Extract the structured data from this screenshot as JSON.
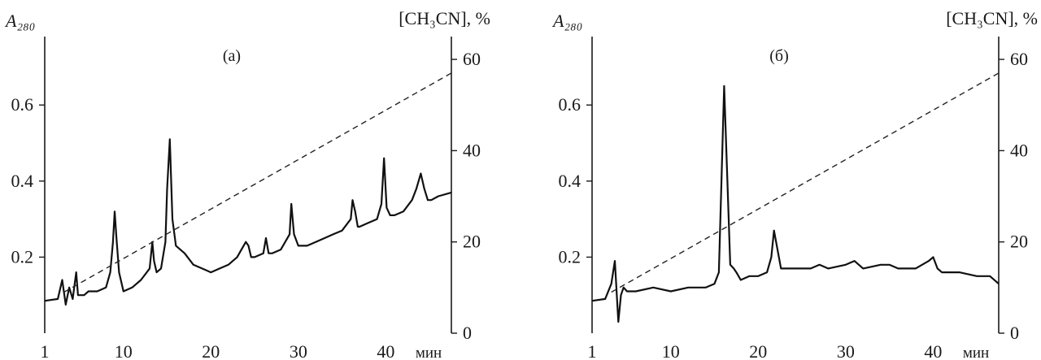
{
  "chart_data": [
    {
      "type": "line",
      "panel_label": "(а)",
      "ylabel_left": "A₂₈₀",
      "ylabel_right": "[CH₃CN], %",
      "xlabel": "мин",
      "xlim": [
        1,
        47.5
      ],
      "ylim_left": [
        0,
        0.78
      ],
      "ylim_right": [
        0,
        65
      ],
      "x_ticks": [
        1,
        10,
        20,
        30,
        40
      ],
      "y_left_ticks": [
        0.2,
        0.4,
        0.6
      ],
      "y_right_ticks": [
        0,
        20,
        40,
        60
      ],
      "grid": false,
      "series": [
        {
          "axis": "left",
          "style": "solid",
          "x": [
            1,
            2.5,
            3.0,
            3.4,
            3.8,
            4.2,
            4.6,
            4.8,
            5.5,
            6,
            7,
            8,
            8.5,
            8.8,
            9.0,
            9.2,
            9.5,
            10,
            11,
            12,
            13,
            13.3,
            13.5,
            13.8,
            14.3,
            14.8,
            15.0,
            15.3,
            15.6,
            16,
            17,
            18,
            19,
            20,
            21,
            22,
            23,
            23.5,
            24,
            24.3,
            24.6,
            25,
            26,
            26.3,
            26.6,
            27,
            28,
            29,
            29.2,
            29.5,
            30,
            31,
            32,
            33,
            34,
            35,
            36,
            36.2,
            36.5,
            36.8,
            37,
            38,
            39,
            39.5,
            39.8,
            40.1,
            40.5,
            41,
            42,
            43,
            43.5,
            44,
            44.4,
            44.8,
            45.2,
            46,
            47.5
          ],
          "y": [
            0.085,
            0.09,
            0.14,
            0.075,
            0.12,
            0.09,
            0.16,
            0.1,
            0.1,
            0.11,
            0.11,
            0.12,
            0.16,
            0.24,
            0.32,
            0.25,
            0.16,
            0.11,
            0.12,
            0.14,
            0.17,
            0.24,
            0.19,
            0.16,
            0.17,
            0.24,
            0.38,
            0.51,
            0.3,
            0.23,
            0.21,
            0.18,
            0.17,
            0.16,
            0.17,
            0.18,
            0.2,
            0.22,
            0.24,
            0.23,
            0.2,
            0.2,
            0.21,
            0.25,
            0.21,
            0.21,
            0.22,
            0.26,
            0.34,
            0.26,
            0.23,
            0.23,
            0.24,
            0.25,
            0.26,
            0.27,
            0.3,
            0.35,
            0.32,
            0.28,
            0.28,
            0.29,
            0.3,
            0.34,
            0.46,
            0.33,
            0.31,
            0.31,
            0.32,
            0.35,
            0.38,
            0.42,
            0.38,
            0.35,
            0.35,
            0.36,
            0.37
          ]
        },
        {
          "axis": "right",
          "style": "dashed",
          "x": [
            3.2,
            47.5
          ],
          "y": [
            9,
            57
          ]
        }
      ]
    },
    {
      "type": "line",
      "panel_label": "(б)",
      "ylabel_left": "A₂₈₀",
      "ylabel_right": "[CH₃CN], %",
      "xlabel": "мин",
      "xlim": [
        1,
        47.5
      ],
      "ylim_left": [
        0,
        0.78
      ],
      "ylim_right": [
        0,
        65
      ],
      "x_ticks": [
        1,
        10,
        20,
        30,
        40
      ],
      "y_left_ticks": [
        0.2,
        0.4,
        0.6
      ],
      "y_right_ticks": [
        0,
        20,
        40,
        60
      ],
      "grid": false,
      "series": [
        {
          "axis": "left",
          "style": "solid",
          "x": [
            1,
            2.5,
            3.2,
            3.6,
            4.0,
            4.3,
            4.6,
            5,
            6,
            8,
            10,
            12,
            14,
            15,
            15.5,
            15.8,
            16.1,
            16.4,
            16.8,
            17.2,
            17.5,
            18,
            19,
            20,
            21,
            21.5,
            21.8,
            22.2,
            22.6,
            23,
            24,
            26,
            27,
            28,
            30,
            31,
            32,
            34,
            35,
            36,
            38,
            39.5,
            40,
            40.5,
            41,
            43,
            45,
            46.5,
            47.5
          ],
          "y": [
            0.085,
            0.09,
            0.13,
            0.19,
            0.03,
            0.1,
            0.12,
            0.11,
            0.11,
            0.12,
            0.11,
            0.12,
            0.12,
            0.13,
            0.16,
            0.4,
            0.65,
            0.45,
            0.18,
            0.17,
            0.16,
            0.14,
            0.15,
            0.15,
            0.16,
            0.2,
            0.27,
            0.22,
            0.17,
            0.17,
            0.17,
            0.17,
            0.18,
            0.17,
            0.18,
            0.19,
            0.17,
            0.18,
            0.18,
            0.17,
            0.17,
            0.19,
            0.2,
            0.17,
            0.16,
            0.16,
            0.15,
            0.15,
            0.13
          ]
        },
        {
          "axis": "right",
          "style": "dashed",
          "x": [
            3.2,
            47.5
          ],
          "y": [
            9,
            57
          ]
        }
      ]
    }
  ]
}
